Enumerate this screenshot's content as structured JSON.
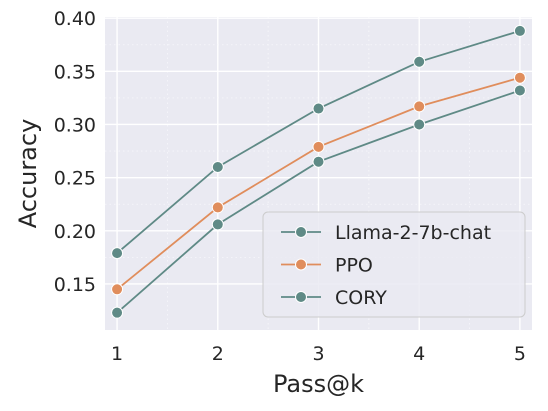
{
  "chart_data": {
    "type": "line",
    "title": "",
    "xlabel": "Pass@k",
    "ylabel": "Accuracy",
    "x": [
      1,
      2,
      3,
      4,
      5
    ],
    "xlim": [
      0.88,
      5.12
    ],
    "ylim": [
      0.1067,
      0.4011
    ],
    "yticks": [
      0.15,
      0.2,
      0.25,
      0.3,
      0.35,
      0.4
    ],
    "grid": true,
    "legend_position": "lower-right",
    "series": [
      {
        "name": "Llama-2-7b-chat",
        "color": "#5f8a86",
        "values": [
          0.179,
          0.26,
          0.315,
          0.359,
          0.388
        ]
      },
      {
        "name": "PPO",
        "color": "#e08d5c",
        "values": [
          0.145,
          0.222,
          0.279,
          0.317,
          0.344
        ]
      },
      {
        "name": "CORY",
        "color": "#5f8a86",
        "values": [
          0.123,
          0.206,
          0.265,
          0.3,
          0.332
        ]
      }
    ]
  }
}
